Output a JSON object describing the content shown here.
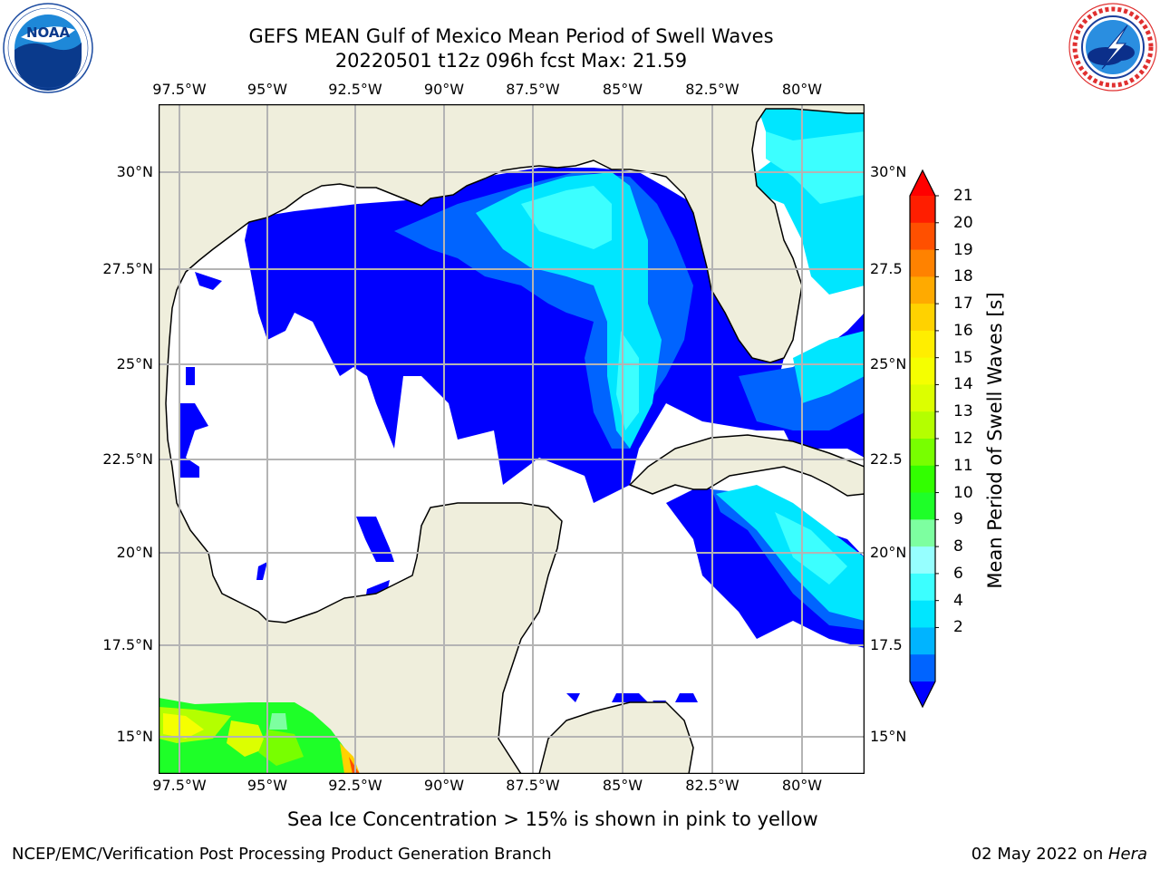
{
  "header": {
    "title_line1": "GEFS MEAN Gulf of Mexico Mean Period of Swell Waves",
    "title_line2": "20220501 t12z 096h fcst   Max: 21.59"
  },
  "logos": {
    "left": {
      "icon": "noaa-logo",
      "text": "NOAA",
      "ring_text": "NATIONAL OCEANIC AND ATMOSPHERIC ADMINISTRATION · U.S. DEPARTMENT OF COMMERCE"
    },
    "right": {
      "icon": "nws-logo",
      "ring_text": "NATIONAL WEATHER SERVICE"
    }
  },
  "map": {
    "lon_ticks_top": [
      "97.5°W",
      "95°W",
      "92.5°W",
      "90°W",
      "87.5°W",
      "85°W",
      "82.5°W",
      "80°W"
    ],
    "lon_ticks_bottom": [
      "97.5°W",
      "95°W",
      "92.5°W",
      "90°W",
      "87.5°W",
      "85°W",
      "82.5°W",
      "80°W"
    ],
    "lat_ticks_left": [
      "30°N",
      "27.5°N",
      "25°N",
      "22.5°N",
      "20°N",
      "17.5°N",
      "15°N"
    ],
    "lat_ticks_right": [
      "30°N",
      "27.5",
      "25°N",
      "22.5",
      "20°N",
      "17.5",
      "15°N"
    ],
    "land_color": "#efeedc",
    "grid_color": "#b4b4b4"
  },
  "colorbar": {
    "label": "Mean Period of Swell Waves [s]",
    "ticks": [
      "21",
      "20",
      "19",
      "18",
      "17",
      "16",
      "15",
      "14",
      "13",
      "12",
      "11",
      "10",
      "9",
      "8",
      "6",
      "4",
      "2"
    ],
    "colors": [
      "#ff1e00",
      "#ff5000",
      "#ff8200",
      "#ffaa00",
      "#ffd200",
      "#ffee00",
      "#f5ff00",
      "#dcff00",
      "#b4ff00",
      "#78ff00",
      "#32ff00",
      "#1eff28",
      "#7dffa0",
      "#96ffff",
      "#3cffff",
      "#00e6ff",
      "#00b4ff",
      "#0064ff"
    ],
    "over_color": "#ff0000",
    "under_color": "#0000ff"
  },
  "notes": {
    "sea_ice": "Sea Ice Concentration > 15% is shown in pink to yellow"
  },
  "footer": {
    "left": "NCEP/EMC/Verification Post Processing Product Generation Branch",
    "date": "02 May 2022 on ",
    "machine": "Hera"
  }
}
